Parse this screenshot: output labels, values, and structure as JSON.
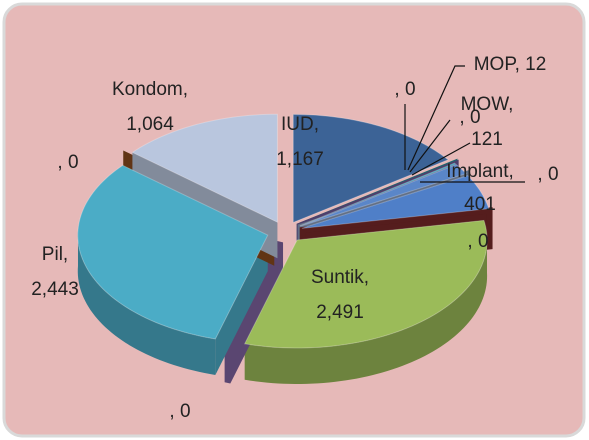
{
  "chart_data": {
    "type": "pie",
    "categories": [
      "IUD",
      null,
      "MOP",
      null,
      "MOW",
      null,
      "Implant",
      null,
      "Suntik",
      null,
      "Pil",
      null,
      "Kondom"
    ],
    "values": [
      1167,
      0,
      12,
      0,
      121,
      0,
      401,
      0,
      2491,
      0,
      2443,
      0,
      1064
    ],
    "value_labels": [
      "1,167",
      "0",
      "12",
      "0",
      "121",
      "0",
      "401",
      "0",
      "2,491",
      "0",
      "2,443",
      "0",
      "1,064"
    ],
    "label_separator": ", ",
    "colors": [
      "#3c6396",
      "#2f8f9d",
      "#2aa0b8",
      "#6f5a9a",
      "#5a86c8",
      "#8a9ec0",
      "#4f7fc8",
      "#7a2a2a",
      "#9bbb59",
      "#8064a2",
      "#4bacc6",
      "#8b4a1e",
      "#b9c6de"
    ]
  }
}
